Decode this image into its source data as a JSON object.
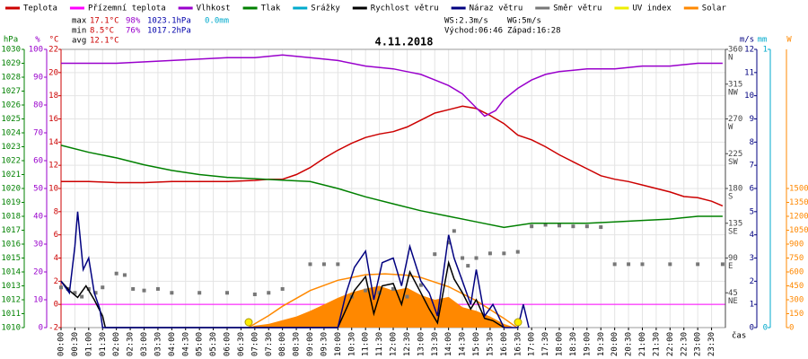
{
  "chart_data": {
    "type": "line",
    "title": "4.11.2018",
    "x_label": "čas",
    "xlim": [
      0,
      24
    ],
    "xticks": [
      {
        "value": 0,
        "label": "00:00"
      },
      {
        "value": 0.5,
        "label": "00:30"
      },
      {
        "value": 1,
        "label": "01:00"
      },
      {
        "value": 1.5,
        "label": "01:30"
      },
      {
        "value": 2,
        "label": "02:00"
      },
      {
        "value": 2.5,
        "label": "02:30"
      },
      {
        "value": 3,
        "label": "03:00"
      },
      {
        "value": 3.5,
        "label": "03:30"
      },
      {
        "value": 4,
        "label": "04:00"
      },
      {
        "value": 4.5,
        "label": "04:30"
      },
      {
        "value": 5,
        "label": "05:00"
      },
      {
        "value": 5.5,
        "label": "05:30"
      },
      {
        "value": 6,
        "label": "06:00"
      },
      {
        "value": 6.5,
        "label": "06:30"
      },
      {
        "value": 7,
        "label": "07:00"
      },
      {
        "value": 7.5,
        "label": "07:30"
      },
      {
        "value": 8,
        "label": "08:00"
      },
      {
        "value": 8.5,
        "label": "08:30"
      },
      {
        "value": 9,
        "label": "09:00"
      },
      {
        "value": 9.5,
        "label": "09:30"
      },
      {
        "value": 10,
        "label": "10:00"
      },
      {
        "value": 10.5,
        "label": "10:30"
      },
      {
        "value": 11,
        "label": "11:00"
      },
      {
        "value": 11.5,
        "label": "11:30"
      },
      {
        "value": 12,
        "label": "12:00"
      },
      {
        "value": 12.5,
        "label": "12:30"
      },
      {
        "value": 13,
        "label": "13:00"
      },
      {
        "value": 13.5,
        "label": "13:30"
      },
      {
        "value": 14,
        "label": "14:00"
      },
      {
        "value": 14.5,
        "label": "14:30"
      },
      {
        "value": 15,
        "label": "15:00"
      },
      {
        "value": 15.5,
        "label": "15:30"
      },
      {
        "value": 16,
        "label": "16:00"
      },
      {
        "value": 16.5,
        "label": "16:30"
      },
      {
        "value": 17,
        "label": "17:00"
      },
      {
        "value": 17.5,
        "label": "17:30"
      },
      {
        "value": 18,
        "label": "18:00"
      },
      {
        "value": 18.5,
        "label": "18:30"
      },
      {
        "value": 19,
        "label": "19:00"
      },
      {
        "value": 19.5,
        "label": "19:30"
      },
      {
        "value": 20,
        "label": "20:00"
      },
      {
        "value": 20.5,
        "label": "20:30"
      },
      {
        "value": 21,
        "label": "21:00"
      },
      {
        "value": 21.5,
        "label": "21:30"
      },
      {
        "value": 22,
        "label": "22:00"
      },
      {
        "value": 22.5,
        "label": "22:30"
      },
      {
        "value": 23,
        "label": "23:00"
      },
      {
        "value": 23.5,
        "label": "23:30"
      }
    ],
    "grid": true,
    "axes": {
      "hpa": {
        "unit": "hPa",
        "lim": [
          1010,
          1030
        ],
        "ticks": [
          1010,
          1011,
          1012,
          1013,
          1014,
          1015,
          1016,
          1017,
          1018,
          1019,
          1020,
          1021,
          1022,
          1023,
          1024,
          1025,
          1026,
          1027,
          1028,
          1029,
          1030
        ],
        "color": "#008000"
      },
      "pct": {
        "unit": "%",
        "lim": [
          0,
          100
        ],
        "ticks": [
          0,
          10,
          20,
          30,
          40,
          50,
          60,
          70,
          80,
          90,
          100
        ],
        "color": "#9900cc"
      },
      "temp": {
        "unit": "°C",
        "lim": [
          -2,
          22
        ],
        "ticks": [
          -2,
          0,
          2,
          4,
          6,
          8,
          10,
          12,
          14,
          16,
          18,
          20,
          22
        ],
        "color": "#cc0000"
      },
      "dir": {
        "lim": [
          0,
          360
        ],
        "ticks": [
          45,
          90,
          135,
          180,
          225,
          270,
          315,
          360
        ],
        "tick_names": [
          "NE",
          "E",
          "SE",
          "S",
          "SW",
          "W",
          "NW",
          "N"
        ],
        "color": "#444444"
      },
      "wind": {
        "unit": "m/s",
        "lim": [
          0,
          12
        ],
        "ticks": [
          0,
          1,
          2,
          3,
          4,
          5,
          6,
          7,
          8,
          9,
          10,
          11,
          12
        ],
        "color": "#000080"
      },
      "rain": {
        "unit": "mm",
        "lim": [
          0,
          1
        ],
        "ticks": [
          0,
          1
        ],
        "color": "#00aacc"
      },
      "solar": {
        "unit": "W",
        "lim": [
          0,
          3000
        ],
        "ticks": [
          0,
          150,
          300,
          450,
          600,
          750,
          900,
          1050,
          1200,
          1350,
          1500
        ],
        "color": "#ff8800"
      }
    },
    "series": [
      {
        "name": "Teplota",
        "color": "#cc0000",
        "kind": "line",
        "axis": "temp",
        "x": [
          0,
          1,
          2,
          3,
          4,
          5,
          6,
          7,
          7.5,
          8,
          8.5,
          9,
          9.5,
          10,
          10.5,
          11,
          11.5,
          12,
          12.5,
          13,
          13.5,
          14,
          14.5,
          15,
          15.5,
          16,
          16.5,
          17,
          17.5,
          18,
          18.5,
          19,
          19.5,
          20,
          20.5,
          21,
          21.5,
          22,
          22.5,
          23,
          23.5,
          23.9
        ],
        "values": [
          10.6,
          10.6,
          10.5,
          10.5,
          10.6,
          10.6,
          10.6,
          10.7,
          10.8,
          10.8,
          11.2,
          11.8,
          12.6,
          13.3,
          13.9,
          14.4,
          14.7,
          14.9,
          15.3,
          15.9,
          16.5,
          16.8,
          17.1,
          16.9,
          16.3,
          15.6,
          14.6,
          14.2,
          13.6,
          12.9,
          12.3,
          11.7,
          11.1,
          10.8,
          10.6,
          10.3,
          10.0,
          9.7,
          9.3,
          9.2,
          8.9,
          8.5
        ]
      },
      {
        "name": "Přízemní teplota",
        "color": "#ff00ff",
        "kind": "line",
        "axis": "temp",
        "x": [],
        "values": []
      },
      {
        "name": "Vlhkost",
        "color": "#9900cc",
        "kind": "line",
        "axis": "pct",
        "x": [
          0,
          2,
          4,
          6,
          7,
          8,
          9,
          10,
          11,
          12,
          12.5,
          13,
          13.5,
          14,
          14.5,
          15,
          15.3,
          15.7,
          16,
          16.5,
          17,
          17.5,
          18,
          19,
          20,
          21,
          22,
          23,
          23.9
        ],
        "values": [
          95,
          95,
          96,
          97,
          97,
          98,
          97,
          96,
          94,
          93,
          92,
          91,
          89,
          87,
          84,
          79,
          76,
          78,
          82,
          86,
          89,
          91,
          92,
          93,
          93,
          94,
          94,
          95,
          95
        ]
      },
      {
        "name": "Tlak",
        "color": "#008000",
        "kind": "line",
        "axis": "hpa",
        "x": [
          0,
          1,
          2,
          3,
          4,
          5,
          6,
          7,
          8,
          9,
          10,
          11,
          12,
          13,
          14,
          15,
          16,
          17,
          18,
          19,
          20,
          21,
          22,
          23,
          23.9
        ],
        "values": [
          1023.1,
          1022.6,
          1022.2,
          1021.7,
          1021.3,
          1021.0,
          1020.8,
          1020.7,
          1020.6,
          1020.5,
          1020.0,
          1019.4,
          1018.9,
          1018.4,
          1018.0,
          1017.6,
          1017.2,
          1017.5,
          1017.5,
          1017.5,
          1017.6,
          1017.7,
          1017.8,
          1018.0,
          1018.0
        ]
      },
      {
        "name": "Srážky",
        "color": "#00aacc",
        "kind": "line",
        "axis": "rain",
        "x": [],
        "values": []
      },
      {
        "name": "Rychlost větru",
        "color": "#000000",
        "kind": "line",
        "axis": "wind",
        "x": [
          0,
          0.3,
          0.6,
          0.9,
          1.2,
          1.5,
          1.6,
          10,
          10.3,
          10.6,
          11,
          11.3,
          11.6,
          12,
          12.3,
          12.6,
          13,
          13.3,
          13.6,
          14,
          14.2,
          14.5,
          14.8,
          15,
          15.3,
          15.6,
          16
        ],
        "values": [
          2.0,
          1.6,
          1.3,
          1.8,
          1.2,
          0.5,
          0,
          0,
          0.8,
          1.6,
          2.2,
          0.6,
          1.8,
          1.9,
          1.0,
          2.4,
          1.5,
          0.8,
          0.2,
          2.8,
          2.1,
          1.5,
          0.8,
          1.2,
          0.4,
          0.3,
          0
        ]
      },
      {
        "name": "Náraz větru",
        "color": "#000080",
        "kind": "line",
        "axis": "wind",
        "x": [
          0,
          0.3,
          0.5,
          0.6,
          0.8,
          1.0,
          1.2,
          1.4,
          1.5,
          10,
          10.3,
          10.6,
          11,
          11.3,
          11.6,
          12,
          12.3,
          12.6,
          13,
          13.3,
          13.6,
          14,
          14.2,
          14.5,
          14.8,
          15,
          15.3,
          15.6,
          16,
          16.5,
          16.7,
          16.9
        ],
        "values": [
          2.0,
          1.5,
          3.5,
          5.0,
          2.5,
          3.0,
          1.5,
          0.8,
          0,
          0,
          1.5,
          2.6,
          3.3,
          1.2,
          2.8,
          3.0,
          1.8,
          3.5,
          2.0,
          1.5,
          0.5,
          4.0,
          3.0,
          2.0,
          1.0,
          2.5,
          0.5,
          1.0,
          0,
          0,
          1.0,
          0
        ]
      },
      {
        "name": "Směr větru",
        "color": "#777777",
        "kind": "scatter",
        "axis": "dir",
        "x": [
          0,
          0.25,
          0.5,
          0.75,
          1,
          1.25,
          1.5,
          2,
          2.3,
          2.6,
          3,
          3.5,
          4,
          5,
          6,
          7,
          7.5,
          8,
          9,
          9.5,
          10,
          10.5,
          11,
          11.5,
          12,
          12.5,
          13,
          13.5,
          14,
          14.2,
          14.5,
          14.7,
          15,
          15.5,
          16,
          16.5,
          17,
          17.5,
          18,
          18.5,
          19,
          19.5,
          20,
          20.5,
          21,
          22,
          23,
          23.9
        ],
        "values": [
          52,
          50,
          45,
          40,
          50,
          45,
          52,
          70,
          68,
          50,
          48,
          50,
          45,
          45,
          45,
          43,
          45,
          50,
          82,
          82,
          82,
          40,
          48,
          45,
          50,
          40,
          55,
          95,
          110,
          125,
          90,
          80,
          90,
          96,
          96,
          98,
          131,
          133,
          132,
          131,
          131,
          130,
          82,
          82,
          82,
          82,
          82,
          82
        ]
      },
      {
        "name": "UV index",
        "color": "#eeee00",
        "kind": "line",
        "axis": "dir",
        "x": [],
        "values": []
      },
      {
        "name": "Solar",
        "color": "#ff8800",
        "kind": "area",
        "axis": "solar",
        "x": [
          6.8,
          7,
          7.5,
          8,
          8.5,
          9,
          9.5,
          10,
          10.5,
          11,
          11.5,
          12,
          12.5,
          13,
          13.5,
          14,
          14.5,
          15,
          15.5,
          16,
          16.4
        ],
        "values": [
          0,
          20,
          40,
          80,
          120,
          180,
          250,
          320,
          380,
          420,
          450,
          400,
          430,
          350,
          300,
          330,
          220,
          180,
          120,
          40,
          0
        ],
        "clear_sky_x": [
          6.77,
          7.5,
          8,
          9,
          10,
          11,
          11.7,
          12.5,
          13,
          14,
          15,
          16,
          16.47
        ],
        "clear_sky_values": [
          0,
          130,
          230,
          400,
          510,
          570,
          580,
          565,
          540,
          440,
          290,
          100,
          0
        ]
      }
    ],
    "stats": {
      "max": {
        "label": "max",
        "temp": "17.1°C",
        "hum": "98%",
        "press": "1023.1hPa",
        "rain": "0.0mm"
      },
      "min": {
        "label": "min",
        "temp": "8.5°C",
        "hum": "76%",
        "press": "1017.2hPa"
      },
      "avg": {
        "label": "avg",
        "temp": "12.1°C"
      },
      "ws": "WS:2.3m/s",
      "wg": "WG:5m/s",
      "sunrise": "Východ:06:46",
      "sunset": "Západ:16:28"
    }
  }
}
